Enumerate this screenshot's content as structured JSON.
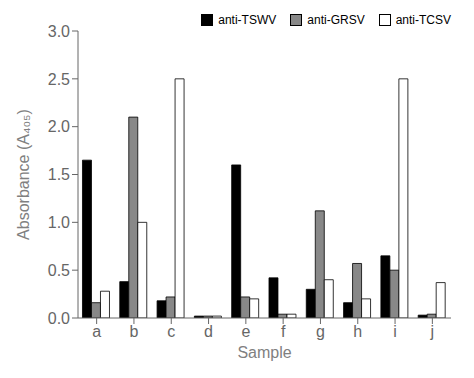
{
  "chart_data": {
    "type": "bar",
    "xlabel": "Sample",
    "ylabel": "Absorbance (A₄₀₅)",
    "categories": [
      "a",
      "b",
      "c",
      "d",
      "e",
      "f",
      "g",
      "h",
      "i",
      "j"
    ],
    "series": [
      {
        "name": "anti-TSWV",
        "color": "#000000",
        "values": [
          1.65,
          0.38,
          0.18,
          0.02,
          1.6,
          0.42,
          0.3,
          0.16,
          0.65,
          0.03
        ]
      },
      {
        "name": "anti-GRSV",
        "color": "#888888",
        "values": [
          0.16,
          2.1,
          0.22,
          0.02,
          0.22,
          0.04,
          1.12,
          0.57,
          0.5,
          0.04
        ]
      },
      {
        "name": "anti-TCSV",
        "color": "#ffffff",
        "values": [
          0.28,
          1.0,
          2.5,
          0.02,
          0.2,
          0.04,
          0.4,
          0.2,
          2.5,
          0.37
        ]
      }
    ],
    "ylim": [
      0,
      3.0
    ],
    "yticks": [
      {
        "value": 0,
        "label": "0.0"
      },
      0.5,
      {
        "value": 1,
        "label": "1.0"
      },
      1.5,
      {
        "value": 2,
        "label": "2.0"
      },
      2.5,
      {
        "value": 3,
        "label": "3.0"
      }
    ],
    "grid": false,
    "legend": "upper right"
  }
}
